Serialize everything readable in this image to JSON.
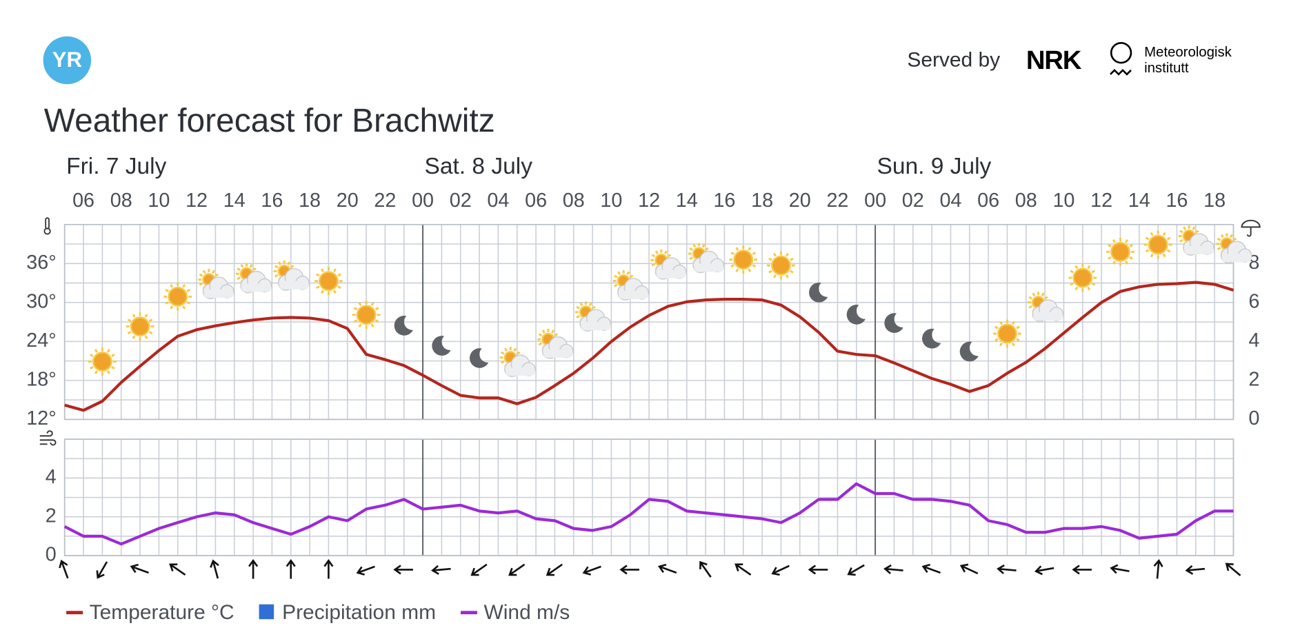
{
  "header": {
    "logo": "YR",
    "served_by": "Served by",
    "nrk": "NRK",
    "met": [
      "Meteorologisk",
      "institutt"
    ]
  },
  "chart_data": [
    {
      "type": "line",
      "title": "Weather forecast for Brachwitz",
      "days": [
        {
          "value": 0,
          "label": "Fri. 7 July"
        },
        {
          "value": 24,
          "label": "Sat. 8 July"
        },
        {
          "value": 48,
          "label": "Sun. 9 July"
        }
      ],
      "xlim": [
        5,
        67
      ],
      "xticks": [
        {
          "value": 6,
          "label": "06"
        },
        {
          "value": 8,
          "label": "08"
        },
        {
          "value": 10,
          "label": "10"
        },
        {
          "value": 12,
          "label": "12"
        },
        {
          "value": 14,
          "label": "14"
        },
        {
          "value": 16,
          "label": "16"
        },
        {
          "value": 18,
          "label": "18"
        },
        {
          "value": 20,
          "label": "20"
        },
        {
          "value": 22,
          "label": "22"
        },
        {
          "value": 24,
          "label": "00"
        },
        {
          "value": 26,
          "label": "02"
        },
        {
          "value": 28,
          "label": "04"
        },
        {
          "value": 30,
          "label": "06"
        },
        {
          "value": 32,
          "label": "08"
        },
        {
          "value": 34,
          "label": "10"
        },
        {
          "value": 36,
          "label": "12"
        },
        {
          "value": 38,
          "label": "14"
        },
        {
          "value": 40,
          "label": "16"
        },
        {
          "value": 42,
          "label": "18"
        },
        {
          "value": 44,
          "label": "20"
        },
        {
          "value": 46,
          "label": "22"
        },
        {
          "value": 48,
          "label": "00"
        },
        {
          "value": 50,
          "label": "02"
        },
        {
          "value": 52,
          "label": "04"
        },
        {
          "value": 54,
          "label": "06"
        },
        {
          "value": 56,
          "label": "08"
        },
        {
          "value": 58,
          "label": "10"
        },
        {
          "value": 60,
          "label": "12"
        },
        {
          "value": 62,
          "label": "14"
        },
        {
          "value": 64,
          "label": "16"
        },
        {
          "value": 66,
          "label": "18"
        }
      ],
      "x": [
        5,
        6,
        7,
        8,
        9,
        10,
        11,
        12,
        13,
        14,
        15,
        16,
        17,
        18,
        19,
        20,
        21,
        22,
        23,
        24,
        25,
        26,
        27,
        28,
        29,
        30,
        31,
        32,
        33,
        34,
        35,
        36,
        37,
        38,
        39,
        40,
        41,
        42,
        43,
        44,
        45,
        46,
        47,
        48,
        49,
        50,
        51,
        52,
        53,
        54,
        55,
        56,
        57,
        58,
        59,
        60,
        61,
        62,
        63,
        64,
        65,
        66,
        67
      ],
      "ylim": [
        12,
        42
      ],
      "yticks": [
        {
          "value": 12,
          "label": "12°"
        },
        {
          "value": 18,
          "label": "18°"
        },
        {
          "value": 24,
          "label": "24°"
        },
        {
          "value": 30,
          "label": "30°"
        },
        {
          "value": 36,
          "label": "36°"
        }
      ],
      "y2lim": [
        0,
        10
      ],
      "y2ticks": [
        0,
        2,
        4,
        6,
        8
      ],
      "series": [
        {
          "name": "Temperature °C",
          "color": "#b3261e",
          "values": [
            14.2,
            13.4,
            14.8,
            17.7,
            20.2,
            22.6,
            24.8,
            25.8,
            26.4,
            26.9,
            27.3,
            27.6,
            27.7,
            27.6,
            27.2,
            26.0,
            22.0,
            21.2,
            20.3,
            18.8,
            17.2,
            15.7,
            15.3,
            15.3,
            14.4,
            15.4,
            17.2,
            19.1,
            21.4,
            24.0,
            26.2,
            28.0,
            29.4,
            30.1,
            30.4,
            30.5,
            30.5,
            30.4,
            29.6,
            27.8,
            25.4,
            22.5,
            22.0,
            21.8,
            20.7,
            19.5,
            18.3,
            17.4,
            16.3,
            17.2,
            19.1,
            20.8,
            22.9,
            25.3,
            27.7,
            30.0,
            31.7,
            32.4,
            32.8,
            32.9,
            33.1,
            32.8,
            31.9
          ]
        },
        {
          "name": "Precipitation mm",
          "color": "#2f6fd6",
          "axis": "y2"
        }
      ],
      "grid": true
    },
    {
      "type": "line",
      "xlim": [
        5,
        67
      ],
      "x": [
        5,
        6,
        7,
        8,
        9,
        10,
        11,
        12,
        13,
        14,
        15,
        16,
        17,
        18,
        19,
        20,
        21,
        22,
        23,
        24,
        25,
        26,
        27,
        28,
        29,
        30,
        31,
        32,
        33,
        34,
        35,
        36,
        37,
        38,
        39,
        40,
        41,
        42,
        43,
        44,
        45,
        46,
        47,
        48,
        49,
        50,
        51,
        52,
        53,
        54,
        55,
        56,
        57,
        58,
        59,
        60,
        61,
        62,
        63,
        64,
        65,
        66,
        67
      ],
      "ylim": [
        0,
        6
      ],
      "yticks": [
        0,
        2,
        4
      ],
      "series": [
        {
          "name": "Wind m/s",
          "color": "#9b2ad6",
          "values": [
            1.5,
            1.0,
            1.0,
            0.6,
            1.0,
            1.4,
            1.7,
            2.0,
            2.2,
            2.1,
            1.7,
            1.4,
            1.1,
            1.5,
            2.0,
            1.8,
            2.4,
            2.6,
            2.9,
            2.4,
            2.5,
            2.6,
            2.3,
            2.2,
            2.3,
            1.9,
            1.8,
            1.4,
            1.3,
            1.5,
            2.1,
            2.9,
            2.8,
            2.3,
            2.2,
            2.1,
            2.0,
            1.9,
            1.7,
            2.2,
            2.9,
            2.9,
            3.7,
            3.2,
            3.2,
            2.9,
            2.9,
            2.8,
            2.6,
            1.8,
            1.6,
            1.2,
            1.2,
            1.4,
            1.4,
            1.5,
            1.3,
            0.9,
            1.0,
            1.1,
            1.8,
            2.3,
            2.3
          ]
        }
      ],
      "direction_x": [
        5,
        7,
        9,
        11,
        13,
        15,
        17,
        19,
        21,
        23,
        25,
        27,
        29,
        31,
        33,
        35,
        37,
        39,
        41,
        43,
        45,
        47,
        49,
        51,
        53,
        55,
        57,
        59,
        61,
        63,
        65,
        67
      ],
      "wind_direction": [
        340,
        210,
        290,
        305,
        345,
        0,
        0,
        0,
        250,
        270,
        265,
        235,
        235,
        235,
        250,
        270,
        290,
        325,
        305,
        245,
        270,
        240,
        275,
        290,
        295,
        275,
        260,
        270,
        280,
        5,
        265,
        310
      ],
      "grid": true
    }
  ]
}
